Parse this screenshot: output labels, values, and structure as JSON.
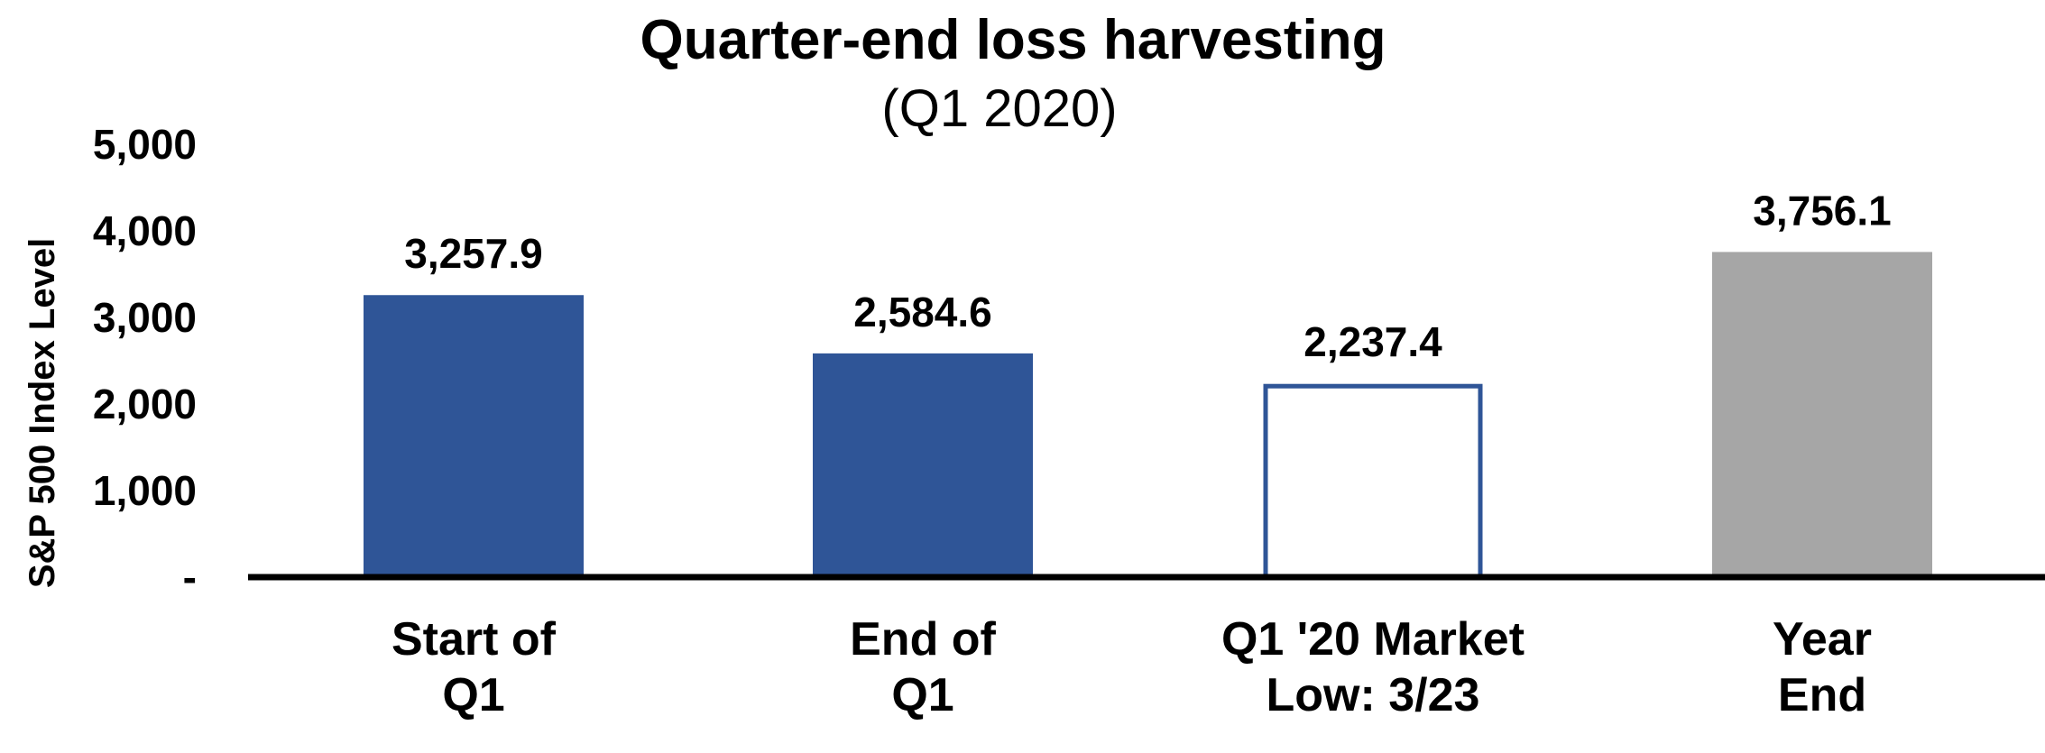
{
  "chart_data": {
    "type": "bar",
    "title": "Quarter-end loss harvesting",
    "subtitle": "(Q1 2020)",
    "ylabel": "S&P 500 Index Level",
    "xlabel": "",
    "ylim": [
      0,
      5000
    ],
    "yticks": [
      0,
      1000,
      2000,
      3000,
      4000,
      5000
    ],
    "ytick_labels": [
      "-",
      "1,000",
      "2,000",
      "3,000",
      "4,000",
      "5,000"
    ],
    "categories": [
      [
        "Start of",
        "Q1"
      ],
      [
        "End of",
        "Q1"
      ],
      [
        "Q1 '20 Market",
        "Low: 3/23"
      ],
      [
        "Year",
        "End"
      ]
    ],
    "values": [
      3257.9,
      2584.6,
      2237.4,
      3756.1
    ],
    "value_labels": [
      "3,257.9",
      "2,584.6",
      "2,237.4",
      "3,756.1"
    ],
    "bar_styles": [
      {
        "fill": "#2f5597",
        "stroke": "none"
      },
      {
        "fill": "#2f5597",
        "stroke": "none"
      },
      {
        "fill": "#ffffff",
        "stroke": "#2f5597"
      },
      {
        "fill": "#a6a6a6",
        "stroke": "none"
      }
    ],
    "grid": false,
    "legend": "none"
  }
}
